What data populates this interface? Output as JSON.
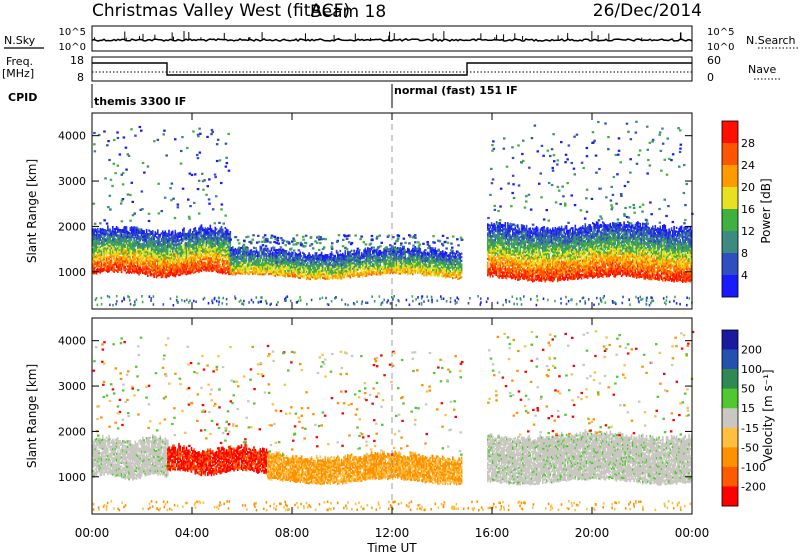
{
  "header": {
    "title": "Christmas Valley West (fitACF)",
    "beam": "Beam 18",
    "date": "26/Dec/2014"
  },
  "nsky_panel": {
    "label": "N.Sky",
    "right_label": "N.Search",
    "left_ticks": [
      "10^5",
      "10^0"
    ],
    "right_ticks": [
      "10^5",
      "10^0"
    ]
  },
  "freq_panel": {
    "label_line1": "Freq.",
    "label_line2": "[MHz]",
    "right_label": "Nave",
    "left_ticks": [
      "18",
      "8"
    ],
    "right_ticks": [
      "60",
      "0"
    ]
  },
  "cpid_panel": {
    "label": "CPID",
    "modes": [
      {
        "name": "themis 3300 IF",
        "start_hour": 0
      },
      {
        "name": "normal (fast) 151 IF",
        "start_hour": 12
      }
    ]
  },
  "colors": {
    "power": [
      "#1a1aff",
      "#2f4fc0",
      "#3d8a80",
      "#40b040",
      "#e8e020",
      "#ff9a00",
      "#ff5500",
      "#ff1000"
    ],
    "velocity": [
      "#ff0000",
      "#ff5a00",
      "#ff9000",
      "#ffbf40",
      "#c8c8c0",
      "#50c830",
      "#2e8a52",
      "#2450b0",
      "#1a1aa0"
    ]
  },
  "chart_data": [
    {
      "type": "heatmap",
      "name": "power",
      "ylabel": "Slant Range [km]",
      "xlabel": "",
      "xlim": [
        0,
        24
      ],
      "ylim": [
        180,
        4500
      ],
      "yticks": [
        1000,
        2000,
        3000,
        4000
      ],
      "colorbar": {
        "label": "Power [dB]",
        "range": [
          0,
          32
        ],
        "ticks": [
          "4",
          "8",
          "12",
          "16",
          "20",
          "24",
          "28"
        ]
      },
      "backscatter_bands": [
        {
          "start_hour": 0.0,
          "end_hour": 5.5,
          "lower_km": 950,
          "upper_km": 1900,
          "level": "high"
        },
        {
          "start_hour": 5.5,
          "end_hour": 14.8,
          "lower_km": 900,
          "upper_km": 1450,
          "level": "medium"
        },
        {
          "start_hour": 15.8,
          "end_hour": 24.0,
          "lower_km": 850,
          "upper_km": 2000,
          "level": "high"
        }
      ]
    },
    {
      "type": "heatmap",
      "name": "velocity",
      "ylabel": "Slant Range [km]",
      "xlabel": "Time UT",
      "xlim": [
        0,
        24
      ],
      "ylim": [
        180,
        4500
      ],
      "yticks": [
        1000,
        2000,
        3000,
        4000
      ],
      "xticks": [
        "00:00",
        "04:00",
        "08:00",
        "12:00",
        "16:00",
        "20:00",
        "00:00"
      ],
      "colorbar": {
        "label": "Velocity [m s⁻¹]",
        "ticks": [
          "200",
          "100",
          "50",
          "15",
          "-15",
          "-50",
          "-100",
          "-200"
        ]
      },
      "backscatter_bands": [
        {
          "start_hour": 0.0,
          "end_hour": 3.0,
          "lower_km": 1000,
          "upper_km": 1800,
          "velocity": "near zero"
        },
        {
          "start_hour": 3.0,
          "end_hour": 7.0,
          "lower_km": 1100,
          "upper_km": 1600,
          "velocity": "-200 to -100"
        },
        {
          "start_hour": 7.0,
          "end_hour": 14.8,
          "lower_km": 900,
          "upper_km": 1450,
          "velocity": "-50 to -15"
        },
        {
          "start_hour": 15.8,
          "end_hour": 24.0,
          "lower_km": 900,
          "upper_km": 1900,
          "velocity": "near zero"
        }
      ]
    }
  ]
}
